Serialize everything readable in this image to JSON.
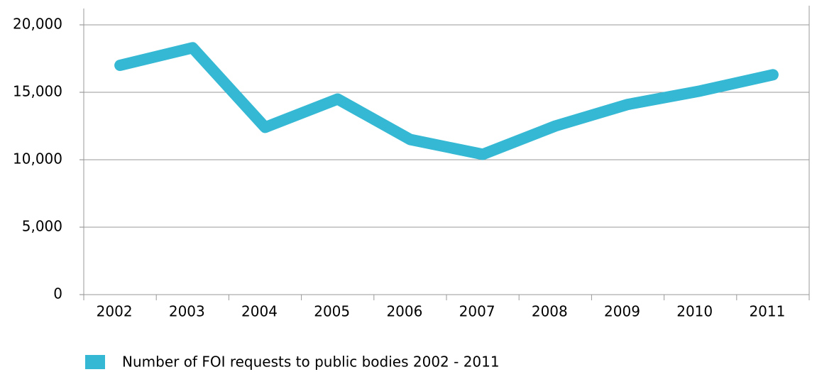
{
  "chart_data": {
    "type": "line",
    "categories": [
      "2002",
      "2003",
      "2004",
      "2005",
      "2006",
      "2007",
      "2008",
      "2009",
      "2010",
      "2011"
    ],
    "series": [
      {
        "name": "Number of FOI requests to public bodies 2002 - 2011",
        "color": "#35b8d3",
        "values": [
          17000,
          18300,
          12400,
          14500,
          11500,
          10400,
          12500,
          14100,
          15100,
          16300
        ]
      }
    ],
    "ylim": [
      0,
      20000
    ],
    "yticks": [
      0,
      {
        "value": 5000,
        "label": "5,000"
      },
      {
        "value": 10000,
        "label": "10,000"
      },
      {
        "value": 15000,
        "label": "15,000"
      },
      {
        "value": 20000,
        "label": "20,000"
      }
    ],
    "grid": true,
    "legend": "bottom"
  }
}
